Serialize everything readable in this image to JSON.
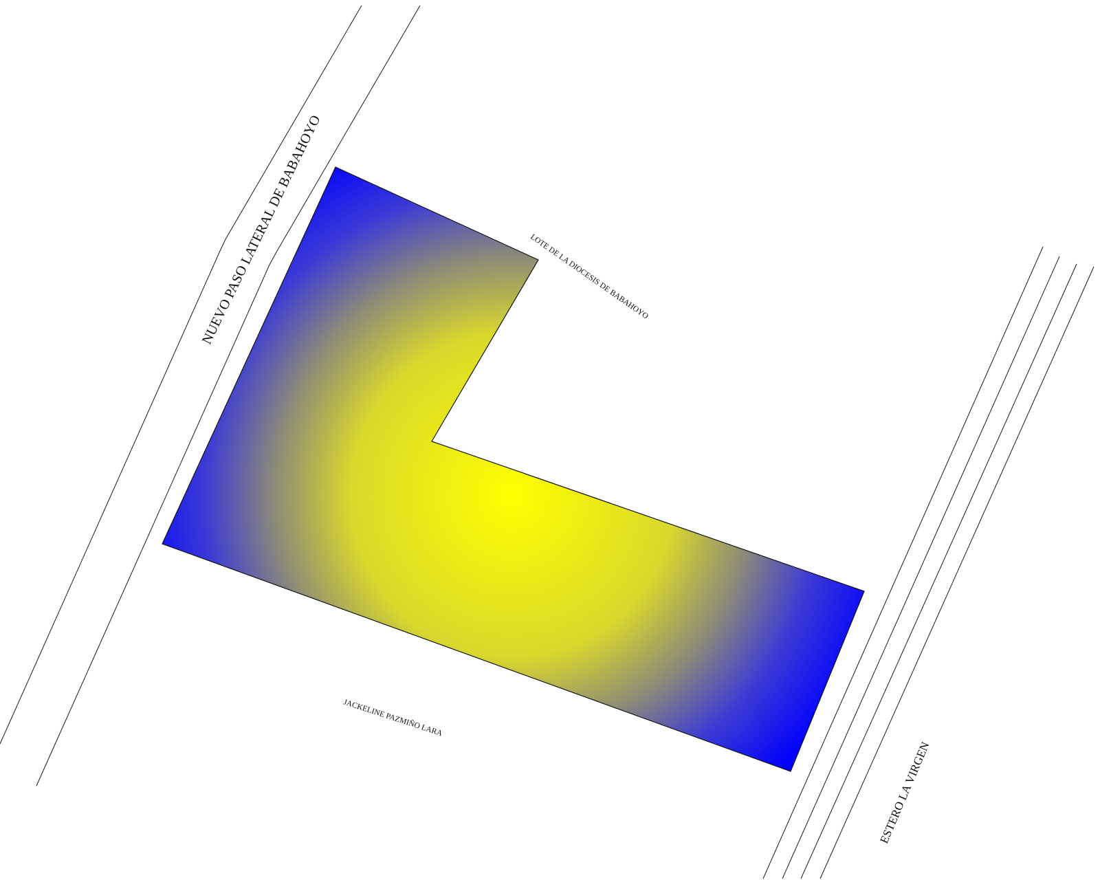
{
  "labels": {
    "road": "NUEVO PASO LATERAL DE BABAHOYO",
    "neighbor_north": "LOTE DE LA DIOCESIS DE BABAHOYO",
    "neighbor_south": "JACKELINE PAZMIÑO LARA",
    "estuary": "ESTERO LA VIRGEN"
  },
  "colors": {
    "lot_center": "#ffff00",
    "lot_edge": "#0000ff",
    "line": "#1a1a1a",
    "background": "#ffffff"
  }
}
